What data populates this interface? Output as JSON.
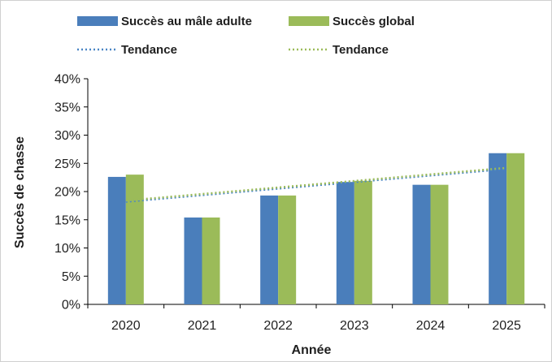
{
  "chart_data": {
    "type": "bar",
    "title": "",
    "xlabel": "Année",
    "ylabel": "Succès de chasse",
    "categories": [
      "2020",
      "2021",
      "2022",
      "2023",
      "2024",
      "2025"
    ],
    "y_ticks": [
      "0%",
      "5%",
      "10%",
      "15%",
      "20%",
      "25%",
      "30%",
      "35%",
      "40%"
    ],
    "ylim": [
      0,
      0.4
    ],
    "grid": false,
    "legend_position": "top",
    "series": [
      {
        "name": "Succès au mâle adulte",
        "color": "#4a7ebb",
        "values": [
          0.226,
          0.154,
          0.193,
          0.217,
          0.212,
          0.268
        ]
      },
      {
        "name": "Succès global",
        "color": "#9bbb59",
        "values": [
          0.23,
          0.154,
          0.193,
          0.219,
          0.212,
          0.268
        ]
      }
    ],
    "trendlines": [
      {
        "name": "Tendance",
        "of_series": "Succès au mâle adulte",
        "color": "#4a86c5",
        "style": "dotted",
        "start": 0.182,
        "end": 0.24
      },
      {
        "name": "Tendance",
        "of_series": "Succès global",
        "color": "#9bbb59",
        "style": "dotted",
        "start": 0.184,
        "end": 0.242
      }
    ]
  }
}
